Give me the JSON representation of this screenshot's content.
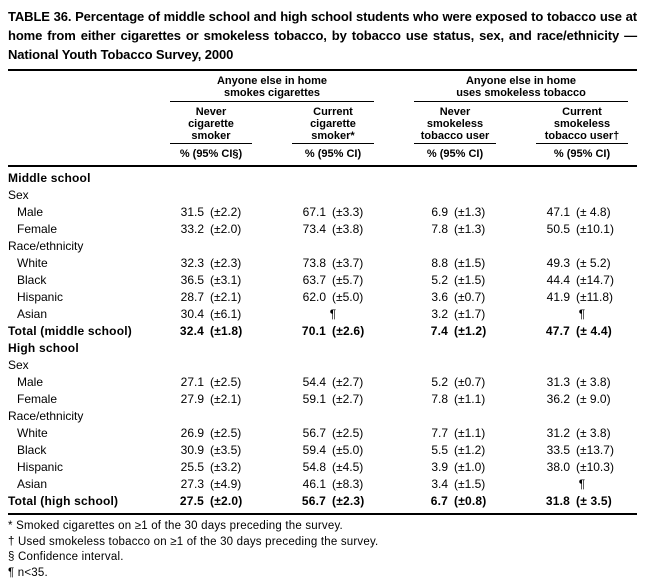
{
  "title": "TABLE 36. Percentage of middle school and high school students who were exposed to tobacco use at home from either cigarettes or smokeless tobacco, by tobacco use status, sex, and race/ethnicity — National Youth Tobacco Survey, 2000",
  "table": {
    "spanners": [
      {
        "label": "Anyone else in home\nsmokes cigarettes"
      },
      {
        "label": "Anyone else in home\nuses smokeless tobacco"
      }
    ],
    "columns": [
      {
        "label": "Never\ncigarette\nsmoker",
        "ci_label": "% (95% CI§)"
      },
      {
        "label": "Current\ncigarette\nsmoker*",
        "ci_label": "% (95% CI)"
      },
      {
        "label": "Never\nsmokeless\ntobacco user",
        "ci_label": "% (95% CI)"
      },
      {
        "label": "Current\nsmokeless\ntobacco user†",
        "ci_label": "% (95% CI)"
      }
    ],
    "rows": [
      {
        "label": "Middle school",
        "type": "section"
      },
      {
        "label": "Sex",
        "type": "group"
      },
      {
        "label": "Male",
        "type": "data",
        "cells": [
          [
            "31.5",
            "(±2.2)"
          ],
          [
            "67.1",
            "(±3.3)"
          ],
          [
            "6.9",
            "(±1.3)"
          ],
          [
            "47.1",
            "(± 4.8)"
          ]
        ]
      },
      {
        "label": "Female",
        "type": "data",
        "cells": [
          [
            "33.2",
            "(±2.0)"
          ],
          [
            "73.4",
            "(±3.8)"
          ],
          [
            "7.8",
            "(±1.3)"
          ],
          [
            "50.5",
            "(±10.1)"
          ]
        ]
      },
      {
        "label": "Race/ethnicity",
        "type": "group"
      },
      {
        "label": "White",
        "type": "data",
        "cells": [
          [
            "32.3",
            "(±2.3)"
          ],
          [
            "73.8",
            "(±3.7)"
          ],
          [
            "8.8",
            "(±1.5)"
          ],
          [
            "49.3",
            "(± 5.2)"
          ]
        ]
      },
      {
        "label": "Black",
        "type": "data",
        "cells": [
          [
            "36.5",
            "(±3.1)"
          ],
          [
            "63.7",
            "(±5.7)"
          ],
          [
            "5.2",
            "(±1.5)"
          ],
          [
            "44.4",
            "(±14.7)"
          ]
        ]
      },
      {
        "label": "Hispanic",
        "type": "data",
        "cells": [
          [
            "28.7",
            "(±2.1)"
          ],
          [
            "62.0",
            "(±5.0)"
          ],
          [
            "3.6",
            "(±0.7)"
          ],
          [
            "41.9",
            "(±11.8)"
          ]
        ]
      },
      {
        "label": "Asian",
        "type": "data",
        "cells": [
          [
            "30.4",
            "(±6.1)"
          ],
          [
            "",
            "¶"
          ],
          [
            "3.2",
            "(±1.7)"
          ],
          [
            "",
            "¶"
          ]
        ]
      },
      {
        "label": "Total (middle school)",
        "type": "total",
        "cells": [
          [
            "32.4",
            "(±1.8)"
          ],
          [
            "70.1",
            "(±2.6)"
          ],
          [
            "7.4",
            "(±1.2)"
          ],
          [
            "47.7",
            "(± 4.4)"
          ]
        ]
      },
      {
        "label": "High school",
        "type": "section"
      },
      {
        "label": "Sex",
        "type": "group"
      },
      {
        "label": "Male",
        "type": "data",
        "cells": [
          [
            "27.1",
            "(±2.5)"
          ],
          [
            "54.4",
            "(±2.7)"
          ],
          [
            "5.2",
            "(±0.7)"
          ],
          [
            "31.3",
            "(± 3.8)"
          ]
        ]
      },
      {
        "label": "Female",
        "type": "data",
        "cells": [
          [
            "27.9",
            "(±2.1)"
          ],
          [
            "59.1",
            "(±2.7)"
          ],
          [
            "7.8",
            "(±1.1)"
          ],
          [
            "36.2",
            "(± 9.0)"
          ]
        ]
      },
      {
        "label": "Race/ethnicity",
        "type": "group"
      },
      {
        "label": "White",
        "type": "data",
        "cells": [
          [
            "26.9",
            "(±2.5)"
          ],
          [
            "56.7",
            "(±2.5)"
          ],
          [
            "7.7",
            "(±1.1)"
          ],
          [
            "31.2",
            "(± 3.8)"
          ]
        ]
      },
      {
        "label": "Black",
        "type": "data",
        "cells": [
          [
            "30.9",
            "(±3.5)"
          ],
          [
            "59.4",
            "(±5.0)"
          ],
          [
            "5.5",
            "(±1.2)"
          ],
          [
            "33.5",
            "(±13.7)"
          ]
        ]
      },
      {
        "label": "Hispanic",
        "type": "data",
        "cells": [
          [
            "25.5",
            "(±3.2)"
          ],
          [
            "54.8",
            "(±4.5)"
          ],
          [
            "3.9",
            "(±1.0)"
          ],
          [
            "38.0",
            "(±10.3)"
          ]
        ]
      },
      {
        "label": "Asian",
        "type": "data",
        "cells": [
          [
            "27.3",
            "(±4.9)"
          ],
          [
            "46.1",
            "(±8.3)"
          ],
          [
            "3.4",
            "(±1.5)"
          ],
          [
            "",
            "¶"
          ]
        ]
      },
      {
        "label": "Total (high school)",
        "type": "total",
        "cells": [
          [
            "27.5",
            "(±2.0)"
          ],
          [
            "56.7",
            "(±2.3)"
          ],
          [
            "6.7",
            "(±0.8)"
          ],
          [
            "31.8",
            "(± 3.5)"
          ]
        ]
      }
    ]
  },
  "footnotes": [
    "* Smoked cigarettes on ≥1 of the 30 days preceding the survey.",
    "† Used smokeless tobacco on ≥1 of the 30 days preceding the survey.",
    "§ Confidence interval.",
    "¶ n<35."
  ]
}
